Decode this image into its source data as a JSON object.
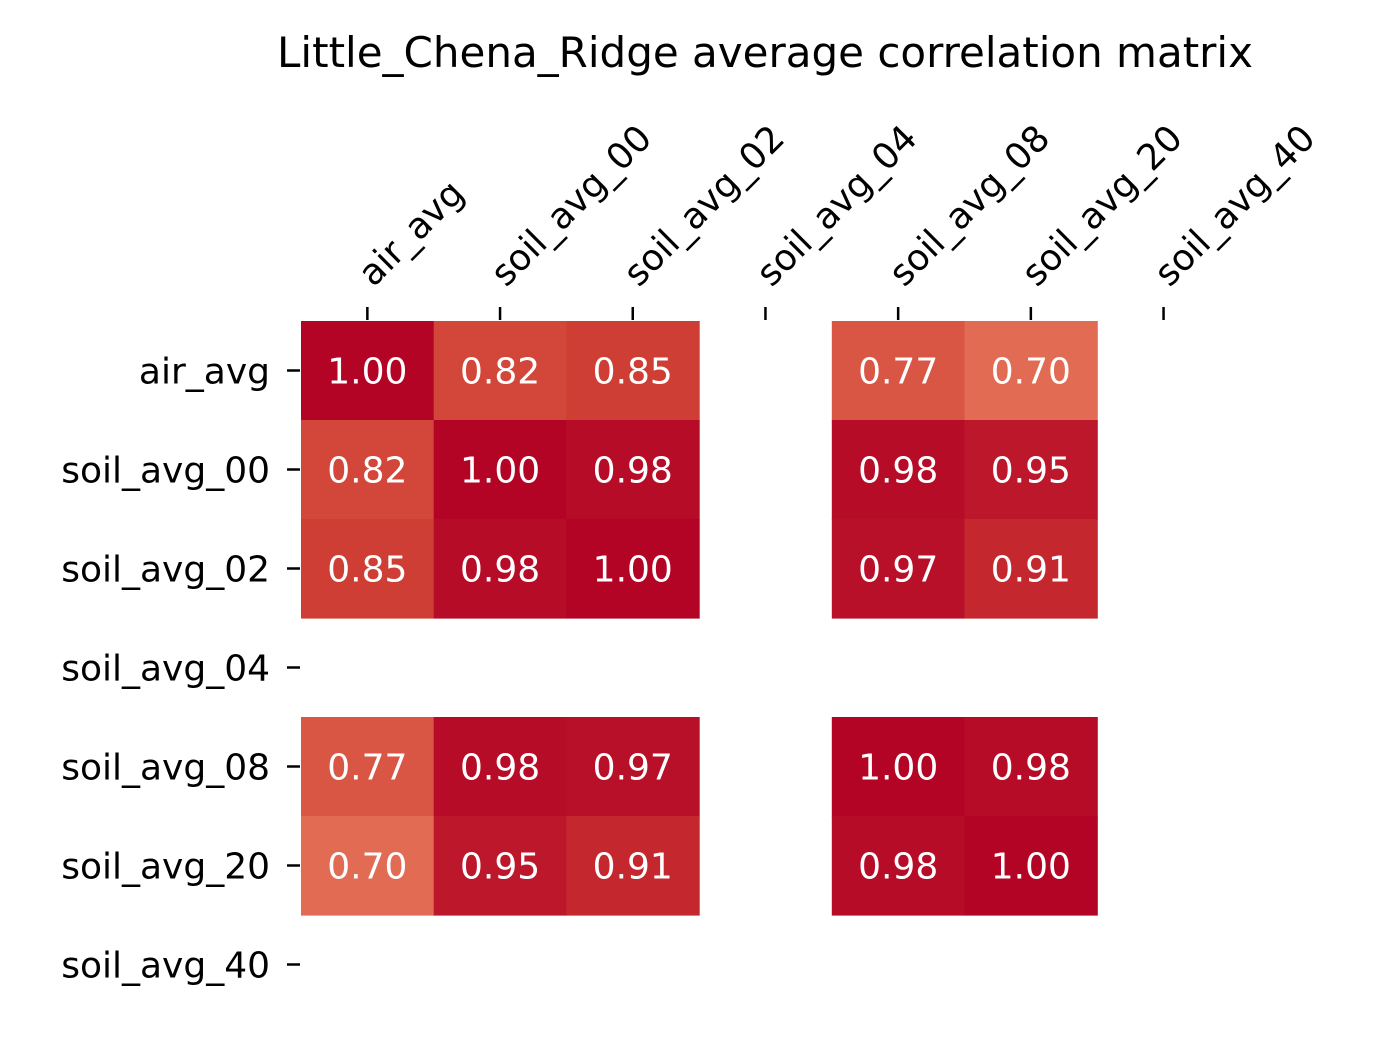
{
  "chart_data": {
    "type": "heatmap",
    "title": "Little_Chena_Ridge average correlation matrix",
    "x_categories": [
      "air_avg",
      "soil_avg_00",
      "soil_avg_02",
      "soil_avg_04",
      "soil_avg_08",
      "soil_avg_20",
      "soil_avg_40"
    ],
    "y_categories": [
      "air_avg",
      "soil_avg_00",
      "soil_avg_02",
      "soil_avg_04",
      "soil_avg_08",
      "soil_avg_20",
      "soil_avg_40"
    ],
    "values": [
      [
        1.0,
        0.82,
        0.85,
        null,
        0.77,
        0.7,
        null
      ],
      [
        0.82,
        1.0,
        0.98,
        null,
        0.98,
        0.95,
        null
      ],
      [
        0.85,
        0.98,
        1.0,
        null,
        0.97,
        0.91,
        null
      ],
      [
        null,
        null,
        null,
        null,
        null,
        null,
        null
      ],
      [
        0.77,
        0.98,
        0.97,
        null,
        1.0,
        0.98,
        null
      ],
      [
        0.7,
        0.95,
        0.91,
        null,
        0.98,
        1.0,
        null
      ],
      [
        null,
        null,
        null,
        null,
        null,
        null,
        null
      ]
    ],
    "value_format": "0.00",
    "colormap": "coolwarm",
    "color_range": [
      -1,
      1
    ],
    "x_axis_position": "top",
    "x_tick_rotation_deg": 45,
    "colorbar": false,
    "grid": false
  }
}
